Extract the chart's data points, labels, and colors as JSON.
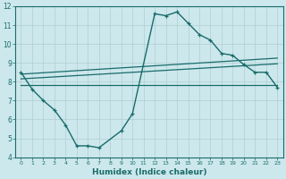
{
  "xlabel": "Humidex (Indice chaleur)",
  "xlim": [
    -0.5,
    23.5
  ],
  "ylim": [
    4,
    12
  ],
  "yticks": [
    4,
    5,
    6,
    7,
    8,
    9,
    10,
    11,
    12
  ],
  "xticks": [
    0,
    1,
    2,
    3,
    4,
    5,
    6,
    7,
    8,
    9,
    10,
    11,
    12,
    13,
    14,
    15,
    16,
    17,
    18,
    19,
    20,
    21,
    22,
    23
  ],
  "bg_color": "#cce8ec",
  "line_color": "#1a6b6b",
  "grid_color": "#b0cdd1",
  "line1_x": [
    0,
    1,
    2,
    3,
    4,
    5,
    6,
    7,
    9,
    10,
    12,
    13,
    14,
    15,
    16,
    17,
    18,
    19,
    20,
    21,
    22,
    23
  ],
  "line1_y": [
    8.5,
    7.6,
    7.0,
    6.5,
    5.7,
    4.6,
    4.6,
    4.5,
    5.4,
    6.3,
    11.6,
    11.5,
    11.7,
    11.1,
    10.5,
    10.2,
    9.5,
    9.4,
    8.9,
    8.5,
    8.5,
    7.7
  ],
  "line2_x": [
    0,
    23
  ],
  "line2_y": [
    7.8,
    7.8
  ],
  "line3_x": [
    0,
    23
  ],
  "line3_y": [
    8.15,
    8.95
  ],
  "line4_x": [
    0,
    23
  ],
  "line4_y": [
    8.4,
    9.25
  ]
}
